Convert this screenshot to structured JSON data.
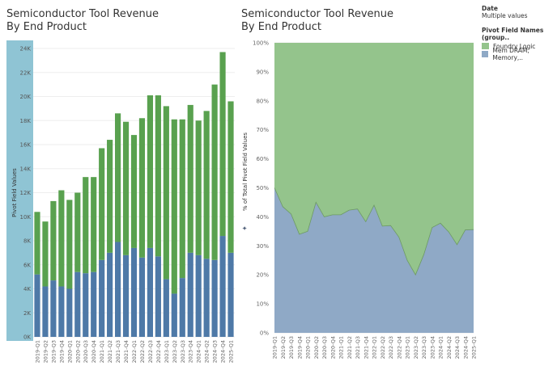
{
  "left_title": [
    "Semiconductor Tool Revenue",
    "By End Product"
  ],
  "right_title": [
    "Semiconductor Tool Revenue",
    "By End Product"
  ],
  "legend": {
    "filter_title": "Date",
    "filter_value": "Multiple values",
    "title": "Pivot Field Names (group..",
    "items": [
      {
        "label": "Foundry Logic",
        "color": "#94c48c"
      },
      {
        "label": "Mem DRAM, Memory,..",
        "color": "#8fa9c6"
      }
    ]
  },
  "chart_data": [
    {
      "type": "bar",
      "stacked": true,
      "categories": [
        "2019-Q1",
        "2019-Q2",
        "2019-Q3",
        "2019-Q4",
        "2020-Q1",
        "2020-Q2",
        "2020-Q3",
        "2020-Q4",
        "2021-Q1",
        "2021-Q2",
        "2021-Q3",
        "2021-Q4",
        "2022-Q1",
        "2022-Q2",
        "2022-Q3",
        "2022-Q4",
        "2023-Q1",
        "2023-Q2",
        "2023-Q3",
        "2023-Q4",
        "2024-Q1",
        "2024-Q2",
        "2024-Q3",
        "2024-Q4",
        "2025-Q1"
      ],
      "series": [
        {
          "name": "Mem DRAM, Memory,..",
          "color": "#4e79a7",
          "values": [
            5200,
            4200,
            4700,
            4200,
            4000,
            5400,
            5300,
            5400,
            6400,
            7000,
            7900,
            6800,
            7400,
            6600,
            7400,
            6700,
            4800,
            3600,
            4900,
            7000,
            6800,
            6500,
            6400,
            8400,
            7000
          ]
        },
        {
          "name": "Foundry Logic",
          "color": "#59a14f",
          "values": [
            5200,
            5400,
            6600,
            8000,
            7400,
            6600,
            8000,
            7900,
            9300,
            9400,
            10700,
            11100,
            9400,
            11600,
            12700,
            13400,
            14400,
            14500,
            13200,
            12300,
            11200,
            12300,
            14600,
            15300,
            12600
          ]
        }
      ],
      "ylabel": "Pivot Field Values",
      "ylim": [
        0,
        24000
      ],
      "yticks": [
        "0K",
        "2K",
        "4K",
        "6K",
        "8K",
        "10K",
        "12K",
        "14K",
        "16K",
        "18K",
        "20K",
        "22K",
        "24K"
      ],
      "grid": true
    },
    {
      "type": "area",
      "stacked": "percent",
      "categories": [
        "2019-Q1",
        "2019-Q2",
        "2019-Q3",
        "2019-Q4",
        "2020-Q1",
        "2020-Q2",
        "2020-Q3",
        "2020-Q4",
        "2021-Q1",
        "2021-Q2",
        "2021-Q3",
        "2021-Q4",
        "2022-Q1",
        "2022-Q2",
        "2022-Q3",
        "2022-Q4",
        "2023-Q1",
        "2023-Q2",
        "2023-Q3",
        "2023-Q4",
        "2024-Q1",
        "2024-Q2",
        "2024-Q3",
        "2024-Q4",
        "2025-Q1"
      ],
      "series": [
        {
          "name": "Mem DRAM, Memory,..",
          "color": "#8fa9c6",
          "values": [
            50,
            43.5,
            41,
            34,
            35,
            45,
            40,
            40.7,
            40.7,
            42.3,
            42.7,
            38.3,
            44,
            36.8,
            37,
            33,
            25,
            20,
            27,
            36.3,
            37.8,
            34.8,
            30.4,
            35.5,
            35.6
          ]
        },
        {
          "name": "Foundry Logic",
          "color": "#94c48c",
          "values": [
            50,
            56.5,
            59,
            66,
            65,
            55,
            60,
            59.3,
            59.3,
            57.7,
            57.3,
            61.7,
            56,
            63.2,
            63,
            67,
            75,
            80,
            73,
            63.7,
            62.2,
            65.2,
            69.6,
            64.5,
            64.4
          ]
        }
      ],
      "ylabel": "% of Total Pivot Field Values",
      "ylim": [
        0,
        100
      ],
      "yticks": [
        "0%",
        "10%",
        "20%",
        "30%",
        "40%",
        "50%",
        "60%",
        "70%",
        "80%",
        "90%",
        "100%"
      ],
      "grid": true
    }
  ]
}
